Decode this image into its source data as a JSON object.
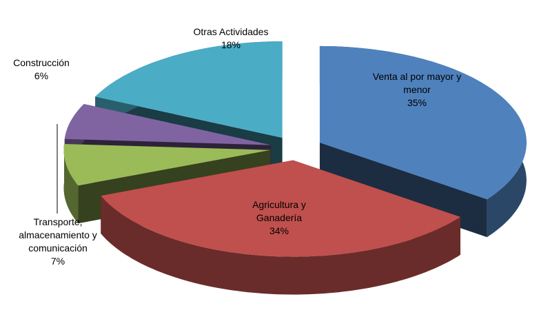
{
  "chart_data": {
    "type": "pie3d",
    "categories": [
      "Venta al por mayor y menor",
      "Agricultura y Ganadería",
      "Transporte, almacenamiento y comunicación",
      "Construcción",
      "Otras Actividades"
    ],
    "values": [
      35,
      34,
      7,
      6,
      18
    ],
    "value_labels": [
      "35%",
      "34%",
      "7%",
      "6%",
      "18%"
    ],
    "colors": [
      "#4f81bd",
      "#c0504d",
      "#9bbb59",
      "#8064a2",
      "#4bacc6"
    ]
  }
}
